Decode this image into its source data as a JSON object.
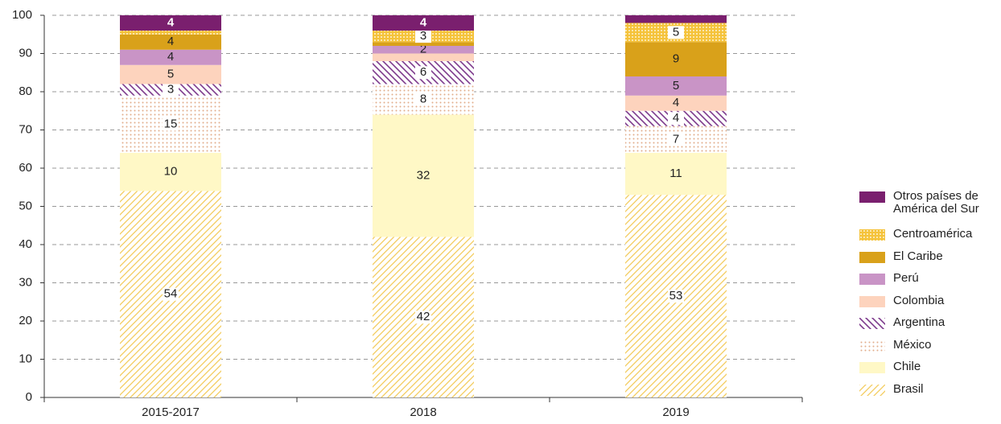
{
  "chart_data": {
    "type": "bar",
    "stacked": true,
    "categories": [
      "2015-2017",
      "2018",
      "2019"
    ],
    "ylim": [
      0,
      100
    ],
    "yticks": [
      0,
      10,
      20,
      30,
      40,
      50,
      60,
      70,
      80,
      90,
      100
    ],
    "grid": true,
    "legend": "right",
    "series": [
      {
        "name": "Brasil",
        "color": "#f3cc5c",
        "pattern": "hatch",
        "values": [
          54,
          42,
          53
        ],
        "value_labels": [
          "54",
          "42",
          "53"
        ]
      },
      {
        "name": "Chile",
        "color": "#fff8c6",
        "pattern": "solid",
        "values": [
          10,
          32,
          11
        ],
        "value_labels": [
          "10",
          "32",
          "11"
        ]
      },
      {
        "name": "México",
        "color": "#e2ad8a",
        "pattern": "dots",
        "values": [
          15,
          8,
          7
        ],
        "value_labels": [
          "15",
          "8",
          "7"
        ]
      },
      {
        "name": "Argentina",
        "color": "#7d3a8c",
        "pattern": "hatch-back",
        "values": [
          3,
          6,
          4
        ],
        "value_labels": [
          "3",
          "6",
          "4"
        ]
      },
      {
        "name": "Colombia",
        "color": "#fdd3bd",
        "pattern": "solid",
        "values": [
          5,
          2,
          4
        ],
        "value_labels": [
          "5",
          null,
          "4"
        ]
      },
      {
        "name": "Perú",
        "color": "#c994c6",
        "pattern": "solid",
        "values": [
          4,
          2,
          5
        ],
        "value_labels": [
          "4",
          "2",
          "5"
        ]
      },
      {
        "name": "El Caribe",
        "color": "#d9a11a",
        "pattern": "solid",
        "values": [
          4,
          1,
          9
        ],
        "value_labels": [
          "4",
          null,
          "9"
        ]
      },
      {
        "name": "Centroamérica",
        "color": "#f5c33b",
        "pattern": "grid",
        "values": [
          1,
          3,
          5
        ],
        "value_labels": [
          null,
          "3",
          "5"
        ]
      },
      {
        "name": "Otros países de América del Sur",
        "color": "#7a1f6e",
        "pattern": "solid",
        "values": [
          4,
          4,
          2
        ],
        "value_labels": [
          "4",
          "4",
          null
        ]
      }
    ]
  }
}
